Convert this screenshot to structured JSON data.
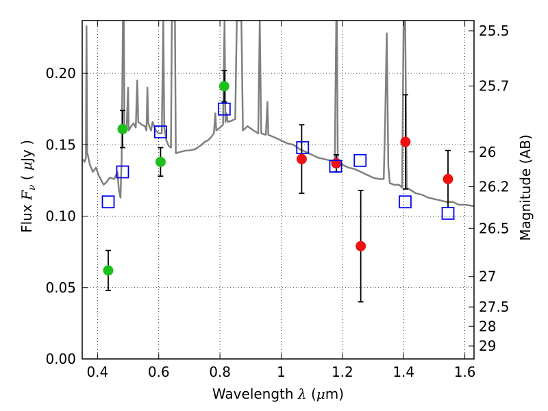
{
  "chart_data": {
    "type": "scatter",
    "xlabel": "Wavelength  λ (μm)",
    "ylabel": "Flux  Fν  ( μJy )",
    "ylabel_right": "Magnitude (AB)",
    "xlim": [
      0.35,
      1.63
    ],
    "ylim": [
      0.0,
      0.237
    ],
    "grid": true,
    "x_ticks": [
      0.4,
      0.6,
      0.8,
      1.0,
      1.2,
      1.4,
      1.6
    ],
    "x_tick_labels": [
      "0.4",
      "0.6",
      "0.8",
      "1",
      "1.2",
      "1.4",
      "1.6"
    ],
    "y_ticks": [
      0.0,
      0.05,
      0.1,
      0.15,
      0.2
    ],
    "y_tick_labels": [
      "0.00",
      "0.05",
      "0.10",
      "0.15",
      "0.20"
    ],
    "right_ticks": [
      {
        "label": "25.5",
        "flux": 0.2298
      },
      {
        "label": "25.7",
        "flux": 0.1911
      },
      {
        "label": "26",
        "flux": 0.145
      },
      {
        "label": "26.2",
        "flux": 0.1206
      },
      {
        "label": "26.5",
        "flux": 0.0915
      },
      {
        "label": "27",
        "flux": 0.0577
      },
      {
        "label": "27.5",
        "flux": 0.0364
      },
      {
        "label": "28",
        "flux": 0.0229
      },
      {
        "label": "29",
        "flux": 0.0091
      }
    ],
    "series": [
      {
        "marker": "circle",
        "color": "#1dbf1d",
        "points": [
          {
            "x": 0.435,
            "y": 0.062,
            "err": 0.014
          },
          {
            "x": 0.482,
            "y": 0.161,
            "err": 0.013
          },
          {
            "x": 0.606,
            "y": 0.138,
            "err": 0.01
          },
          {
            "x": 0.814,
            "y": 0.191,
            "err": 0.011
          }
        ]
      },
      {
        "marker": "circle",
        "color": "#ee1111",
        "points": [
          {
            "x": 1.067,
            "y": 0.14,
            "err": 0.024
          },
          {
            "x": 1.18,
            "y": 0.137,
            "err": 0.006
          },
          {
            "x": 1.26,
            "y": 0.079,
            "err": 0.039
          },
          {
            "x": 1.406,
            "y": 0.152,
            "err": 0.033
          },
          {
            "x": 1.545,
            "y": 0.126,
            "err": 0.02
          }
        ]
      },
      {
        "marker": "square",
        "color": "#0000ee",
        "points": [
          {
            "x": 0.435,
            "y": 0.11
          },
          {
            "x": 0.482,
            "y": 0.131
          },
          {
            "x": 0.606,
            "y": 0.159
          },
          {
            "x": 0.814,
            "y": 0.175
          },
          {
            "x": 1.07,
            "y": 0.148
          },
          {
            "x": 1.178,
            "y": 0.135
          },
          {
            "x": 1.258,
            "y": 0.139
          },
          {
            "x": 1.405,
            "y": 0.11
          },
          {
            "x": 1.545,
            "y": 0.102
          }
        ]
      },
      {
        "type": "line",
        "color": "#808080",
        "points": [
          [
            0.35,
            0.14
          ],
          [
            0.358,
            0.138
          ],
          [
            0.362,
            0.141
          ],
          [
            0.364,
            0.233
          ],
          [
            0.366,
            0.145
          ],
          [
            0.375,
            0.136
          ],
          [
            0.385,
            0.131
          ],
          [
            0.395,
            0.134
          ],
          [
            0.405,
            0.128
          ],
          [
            0.42,
            0.122
          ],
          [
            0.43,
            0.124
          ],
          [
            0.44,
            0.127
          ],
          [
            0.455,
            0.126
          ],
          [
            0.465,
            0.131
          ],
          [
            0.47,
            0.118
          ],
          [
            0.475,
            0.113
          ],
          [
            0.479,
            0.14
          ],
          [
            0.483,
            0.237
          ],
          [
            0.486,
            0.237
          ],
          [
            0.488,
            0.16
          ],
          [
            0.495,
            0.16
          ],
          [
            0.5,
            0.19
          ],
          [
            0.502,
            0.16
          ],
          [
            0.51,
            0.163
          ],
          [
            0.518,
            0.165
          ],
          [
            0.525,
            0.162
          ],
          [
            0.53,
            0.195
          ],
          [
            0.533,
            0.166
          ],
          [
            0.545,
            0.164
          ],
          [
            0.555,
            0.163
          ],
          [
            0.56,
            0.16
          ],
          [
            0.563,
            0.19
          ],
          [
            0.566,
            0.165
          ],
          [
            0.575,
            0.16
          ],
          [
            0.58,
            0.166
          ],
          [
            0.59,
            0.16
          ],
          [
            0.6,
            0.158
          ],
          [
            0.61,
            0.158
          ],
          [
            0.615,
            0.237
          ],
          [
            0.618,
            0.162
          ],
          [
            0.625,
            0.153
          ],
          [
            0.633,
            0.149
          ],
          [
            0.64,
            0.148
          ],
          [
            0.643,
            0.237
          ],
          [
            0.646,
            0.237
          ],
          [
            0.65,
            0.237
          ],
          [
            0.653,
            0.237
          ],
          [
            0.656,
            0.144
          ],
          [
            0.67,
            0.145
          ],
          [
            0.69,
            0.146
          ],
          [
            0.7,
            0.146
          ],
          [
            0.72,
            0.147
          ],
          [
            0.74,
            0.15
          ],
          [
            0.75,
            0.152
          ],
          [
            0.76,
            0.153
          ],
          [
            0.77,
            0.155
          ],
          [
            0.78,
            0.158
          ],
          [
            0.785,
            0.172
          ],
          [
            0.788,
            0.16
          ],
          [
            0.8,
            0.162
          ],
          [
            0.81,
            0.164
          ],
          [
            0.815,
            0.237
          ],
          [
            0.818,
            0.166
          ],
          [
            0.822,
            0.172
          ],
          [
            0.825,
            0.166
          ],
          [
            0.84,
            0.167
          ],
          [
            0.85,
            0.168
          ],
          [
            0.855,
            0.237
          ],
          [
            0.86,
            0.237
          ],
          [
            0.866,
            0.237
          ],
          [
            0.87,
            0.237
          ],
          [
            0.875,
            0.16
          ],
          [
            0.89,
            0.163
          ],
          [
            0.91,
            0.16
          ],
          [
            0.925,
            0.158
          ],
          [
            0.93,
            0.237
          ],
          [
            0.935,
            0.158
          ],
          [
            0.95,
            0.157
          ],
          [
            0.955,
            0.18
          ],
          [
            0.958,
            0.157
          ],
          [
            0.98,
            0.155
          ],
          [
            1.0,
            0.153
          ],
          [
            1.02,
            0.151
          ],
          [
            1.04,
            0.15
          ],
          [
            1.06,
            0.147
          ],
          [
            1.08,
            0.145
          ],
          [
            1.1,
            0.143
          ],
          [
            1.12,
            0.141
          ],
          [
            1.14,
            0.14
          ],
          [
            1.16,
            0.139
          ],
          [
            1.175,
            0.138
          ],
          [
            1.18,
            0.237
          ],
          [
            1.182,
            0.237
          ],
          [
            1.185,
            0.138
          ],
          [
            1.2,
            0.136
          ],
          [
            1.22,
            0.134
          ],
          [
            1.24,
            0.133
          ],
          [
            1.26,
            0.131
          ],
          [
            1.28,
            0.129
          ],
          [
            1.3,
            0.127
          ],
          [
            1.32,
            0.126
          ],
          [
            1.335,
            0.126
          ],
          [
            1.34,
            0.17
          ],
          [
            1.345,
            0.228
          ],
          [
            1.35,
            0.135
          ],
          [
            1.355,
            0.123
          ],
          [
            1.37,
            0.122
          ],
          [
            1.385,
            0.122
          ],
          [
            1.395,
            0.12
          ],
          [
            1.4,
            0.237
          ],
          [
            1.405,
            0.237
          ],
          [
            1.41,
            0.12
          ],
          [
            1.425,
            0.118
          ],
          [
            1.44,
            0.116
          ],
          [
            1.46,
            0.115
          ],
          [
            1.48,
            0.113
          ],
          [
            1.5,
            0.112
          ],
          [
            1.52,
            0.111
          ],
          [
            1.54,
            0.11
          ],
          [
            1.56,
            0.11
          ],
          [
            1.58,
            0.108
          ],
          [
            1.6,
            0.108
          ],
          [
            1.63,
            0.107
          ]
        ]
      }
    ]
  }
}
